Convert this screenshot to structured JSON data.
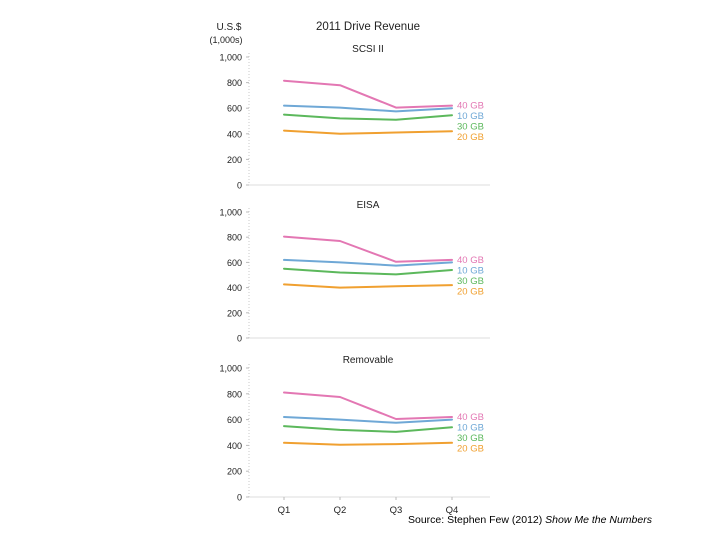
{
  "chart_data": {
    "type": "line",
    "title": "2011 Drive Revenue",
    "ylabel": "U.S.$ (1,000s)",
    "ylabel_line1": "U.S.$",
    "ylabel_line2": "(1,000s)",
    "categories": [
      "Q1",
      "Q2",
      "Q3",
      "Q4"
    ],
    "ylim": [
      0,
      1000
    ],
    "yticks": [
      "0",
      "200",
      "400",
      "600",
      "800",
      "1,000"
    ],
    "ytick_values": [
      0,
      200,
      400,
      600,
      800,
      1000
    ],
    "grid": false,
    "colors": {
      "40 GB": "#e377b3",
      "10 GB": "#6fa8d6",
      "30 GB": "#5cb85c",
      "20 GB": "#f0a030"
    },
    "panels": [
      {
        "title": "SCSI II",
        "series": [
          {
            "name": "40 GB",
            "values": [
              815,
              780,
              605,
              620
            ]
          },
          {
            "name": "10 GB",
            "values": [
              620,
              605,
              575,
              600
            ]
          },
          {
            "name": "30 GB",
            "values": [
              550,
              520,
              510,
              545
            ]
          },
          {
            "name": "20 GB",
            "values": [
              425,
              400,
              410,
              420
            ]
          }
        ]
      },
      {
        "title": "EISA",
        "series": [
          {
            "name": "40 GB",
            "values": [
              805,
              770,
              605,
              620
            ]
          },
          {
            "name": "10 GB",
            "values": [
              620,
              600,
              575,
              600
            ]
          },
          {
            "name": "30 GB",
            "values": [
              550,
              520,
              505,
              540
            ]
          },
          {
            "name": "20 GB",
            "values": [
              425,
              400,
              410,
              420
            ]
          }
        ]
      },
      {
        "title": "Removable",
        "series": [
          {
            "name": "40 GB",
            "values": [
              810,
              775,
              605,
              620
            ]
          },
          {
            "name": "10 GB",
            "values": [
              620,
              600,
              575,
              600
            ]
          },
          {
            "name": "30 GB",
            "values": [
              550,
              520,
              505,
              540
            ]
          },
          {
            "name": "20 GB",
            "values": [
              420,
              405,
              410,
              420
            ]
          }
        ]
      }
    ],
    "legend_order": [
      "40 GB",
      "10 GB",
      "30 GB",
      "20 GB"
    ]
  },
  "source": {
    "prefix": "Source: Stephen Few (2012) ",
    "book": "Show Me the Numbers"
  }
}
